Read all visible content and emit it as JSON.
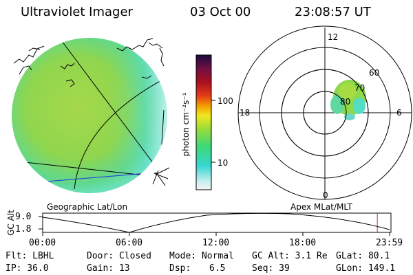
{
  "header": {
    "instrument": "Ultraviolet Imager",
    "date": "03 Oct 00",
    "time": "23:08:57 UT"
  },
  "colorbar": {
    "unit_label": "photon cm⁻²s⁻¹",
    "ticks": [
      "100",
      "10"
    ]
  },
  "left_panel": {
    "caption": "Geographic Lat/Lon"
  },
  "right_panel": {
    "caption": "Apex MLat/MLT",
    "mlt_labels": {
      "top": "12",
      "left": "18",
      "right": "6",
      "bottom": "0"
    },
    "lat_labels": [
      "60",
      "70",
      "80"
    ]
  },
  "altitude_plot": {
    "y_axis_label": "GC Alt",
    "y_ticks": [
      "9.0",
      "1.8"
    ],
    "x_ticks": [
      "00:00",
      "06:00",
      "12:00",
      "18:00",
      "23:59"
    ],
    "current_marker_hours": 23.15
  },
  "status": {
    "flt": "Flt: LBHL",
    "ip": "IP: 36.0",
    "door": "Door: Closed",
    "gain": "Gain: 13",
    "mode": "Mode: Normal",
    "dsp_label": "Dsp:",
    "dsp_value": "6.5",
    "gc_alt": "GC Alt: 3.1 Re",
    "seq": "Seq: 39",
    "glat": "GLat: 80.1",
    "glon": "GLon: 149.1"
  }
}
